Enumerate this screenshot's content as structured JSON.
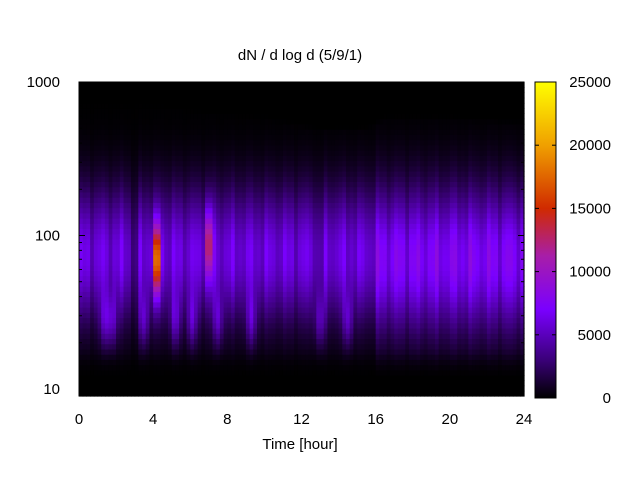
{
  "chart_data": {
    "type": "heatmap",
    "title": "dN / d log d (5/9/1)",
    "xlabel": "Time [hour]",
    "ylabel": "",
    "xlim": [
      0,
      24
    ],
    "ylim": [
      9,
      1000
    ],
    "y_scale": "log",
    "x_ticks": [
      0,
      4,
      8,
      12,
      16,
      20,
      24
    ],
    "x_tick_labels": [
      "0",
      "4",
      "8",
      "12",
      "16",
      "20",
      "24"
    ],
    "y_ticks": [
      10,
      100,
      1000
    ],
    "y_tick_labels": [
      "10",
      "100",
      "1000"
    ],
    "colorbar": {
      "range": [
        0,
        25000
      ],
      "ticks": [
        0,
        5000,
        10000,
        15000,
        20000,
        25000
      ],
      "tick_labels": [
        "0",
        "5000",
        "10000",
        "15000",
        "20000",
        "25000"
      ],
      "palette": [
        "#000000",
        "#3a0078",
        "#7a00ff",
        "#a81ea8",
        "#d02a00",
        "#f0a000",
        "#ffff00"
      ]
    },
    "grid": false,
    "features": {
      "upper_cutoff_diameter": [
        {
          "t": 0,
          "d": 700
        },
        {
          "t": 4,
          "d": 680
        },
        {
          "t": 7,
          "d": 600
        },
        {
          "t": 10,
          "d": 560
        },
        {
          "t": 13,
          "d": 470
        },
        {
          "t": 15.5,
          "d": 480
        },
        {
          "t": 16.5,
          "d": 560
        },
        {
          "t": 20,
          "d": 560
        },
        {
          "t": 24,
          "d": 520
        }
      ],
      "lower_cutoff_diameter": 18,
      "background_levels": {
        "before_16h": {
          "mode_diameter": 75,
          "peak_value": 7000
        },
        "after_16h": {
          "mode_diameter": 70,
          "peak_value": 8500
        }
      },
      "bursts": [
        {
          "time": 4.2,
          "mode_diameter": 70,
          "peak_value": 19000
        },
        {
          "time": 7.0,
          "mode_diameter": 90,
          "peak_value": 13000
        }
      ]
    }
  }
}
